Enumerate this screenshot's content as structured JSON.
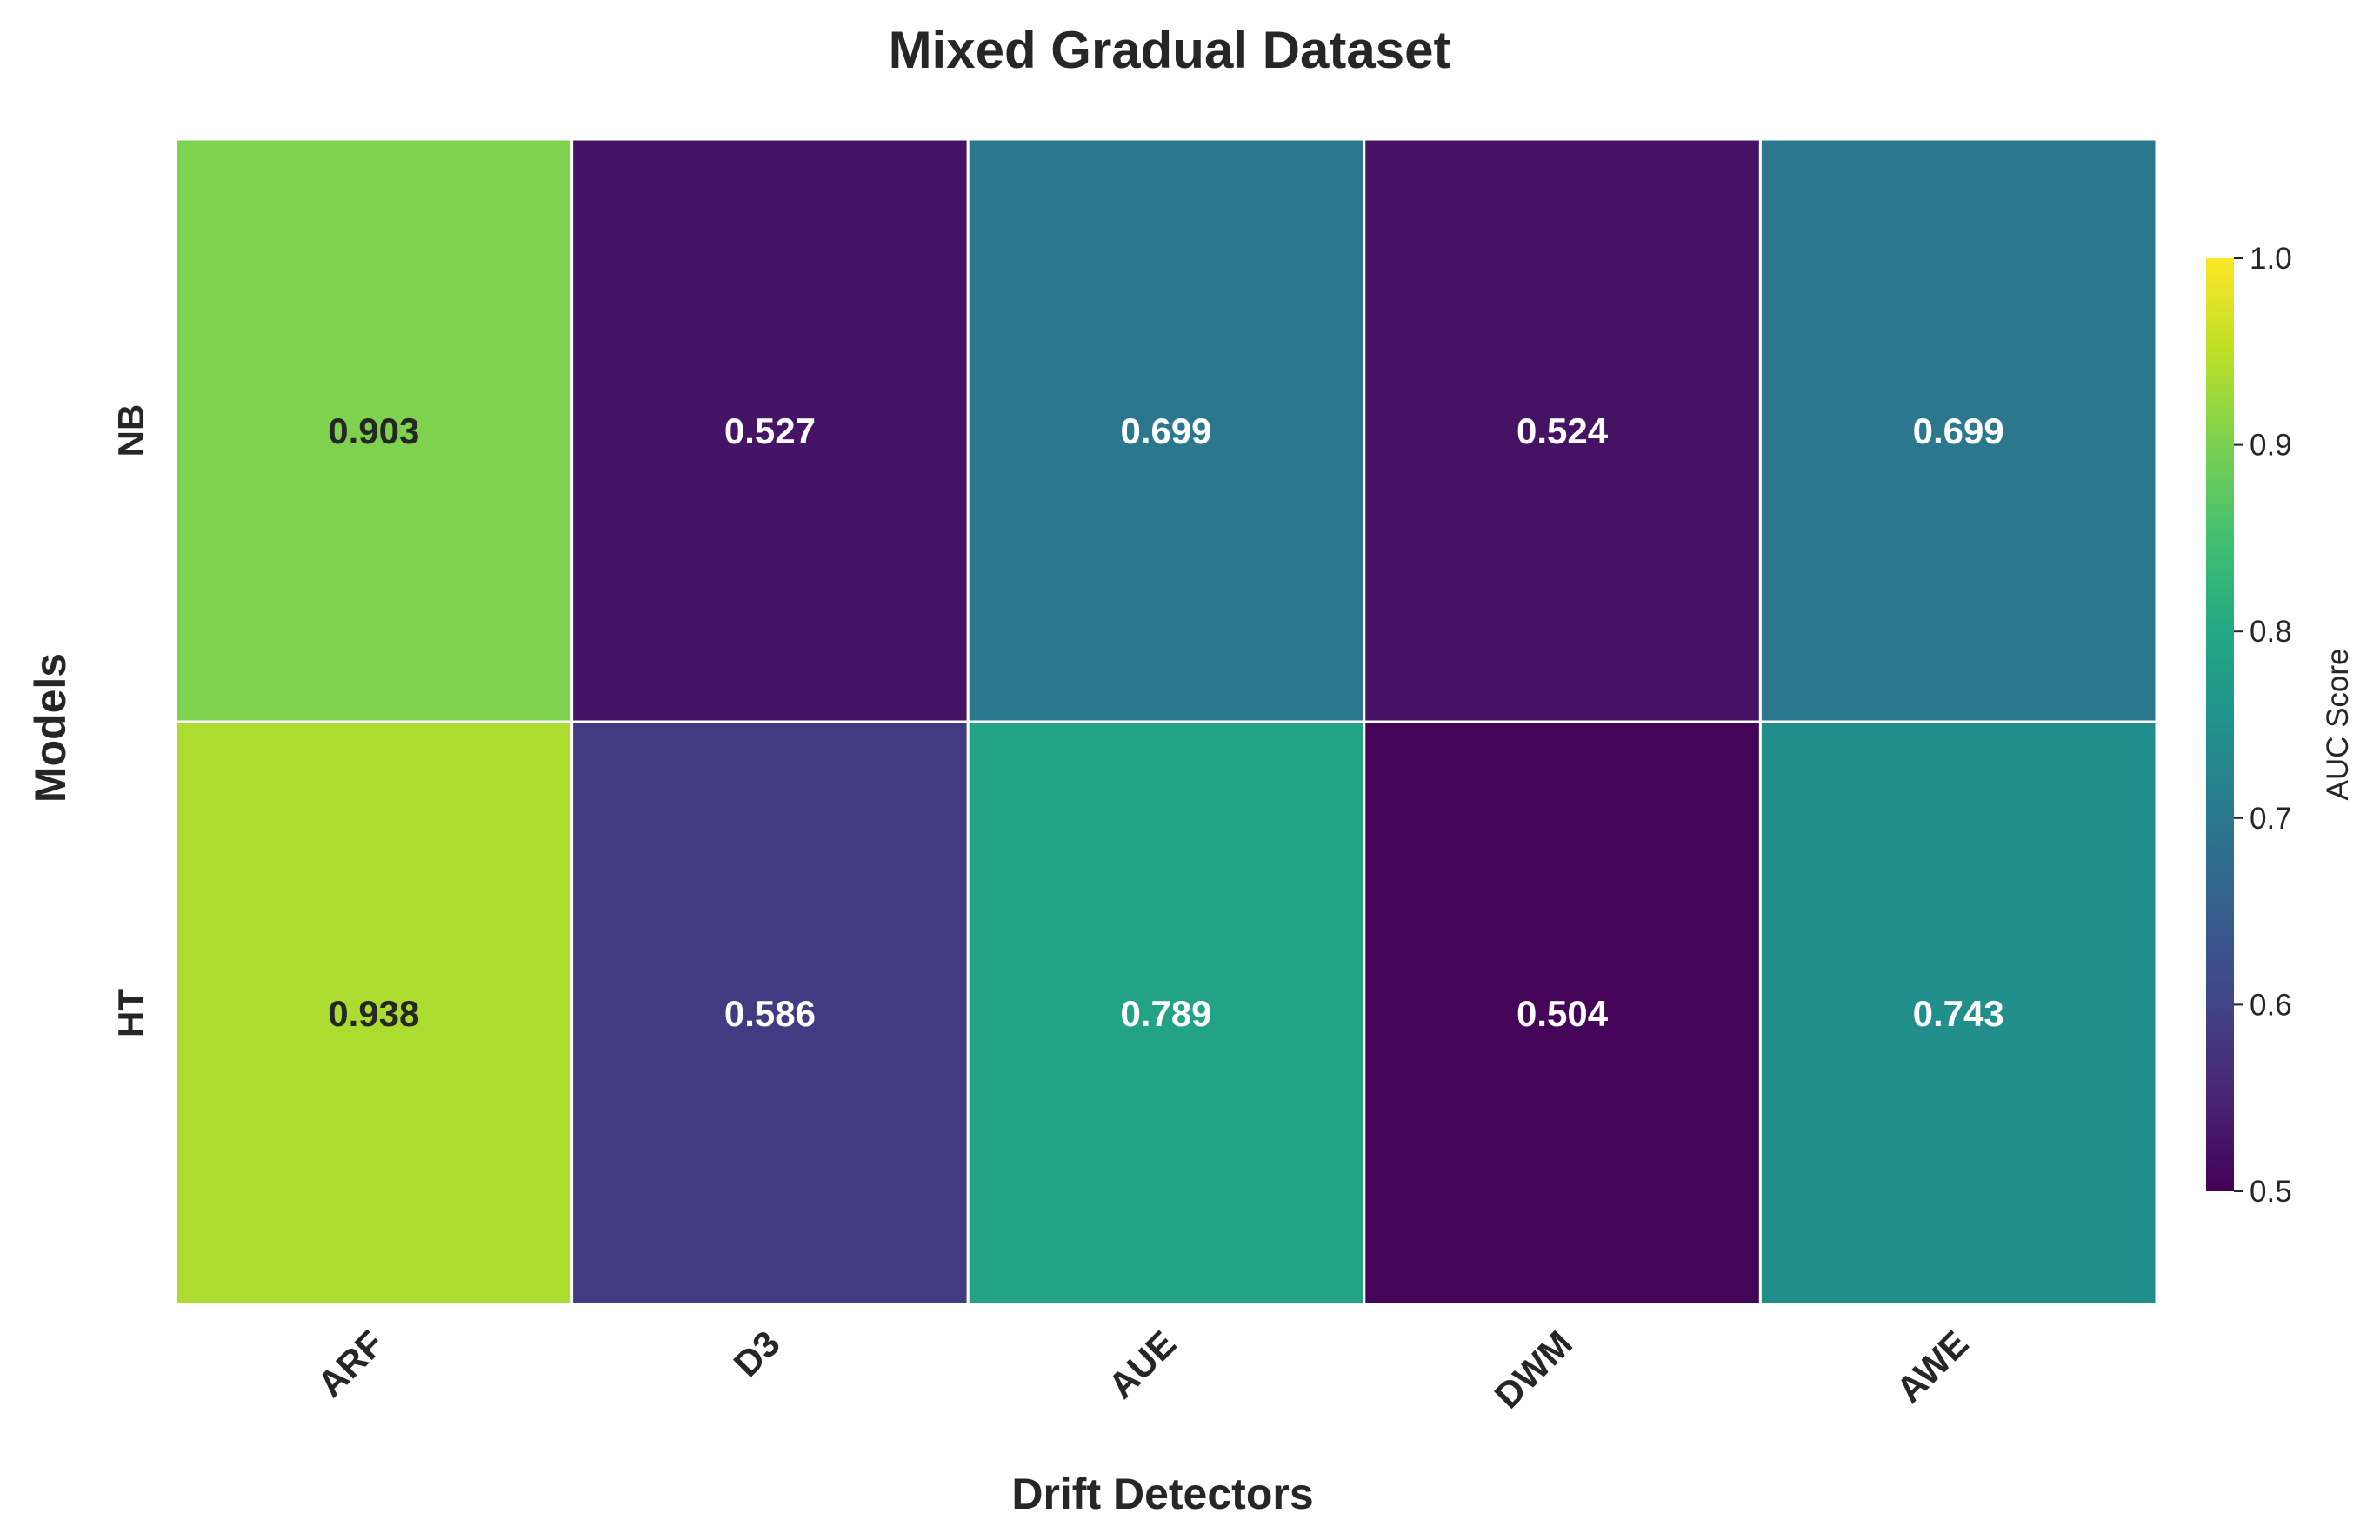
{
  "chart_data": {
    "type": "heatmap",
    "title": "Mixed Gradual Dataset",
    "xlabel": "Drift Detectors",
    "ylabel": "Models",
    "x_categories": [
      "ARF",
      "D3",
      "AUE",
      "DWM",
      "AWE"
    ],
    "y_categories": [
      "NB",
      "HT"
    ],
    "values": [
      [
        0.903,
        0.527,
        0.699,
        0.524,
        0.699
      ],
      [
        0.938,
        0.586,
        0.789,
        0.504,
        0.743
      ]
    ],
    "value_labels": [
      [
        "0.903",
        "0.527",
        "0.699",
        "0.524",
        "0.699"
      ],
      [
        "0.938",
        "0.586",
        "0.789",
        "0.504",
        "0.743"
      ]
    ],
    "colormap": "viridis",
    "colorbar": {
      "label": "AUC Score",
      "vmin": 0.5,
      "vmax": 1.0,
      "ticks": [
        "0.5",
        "0.6",
        "0.7",
        "0.8",
        "0.9",
        "1.0"
      ]
    }
  }
}
